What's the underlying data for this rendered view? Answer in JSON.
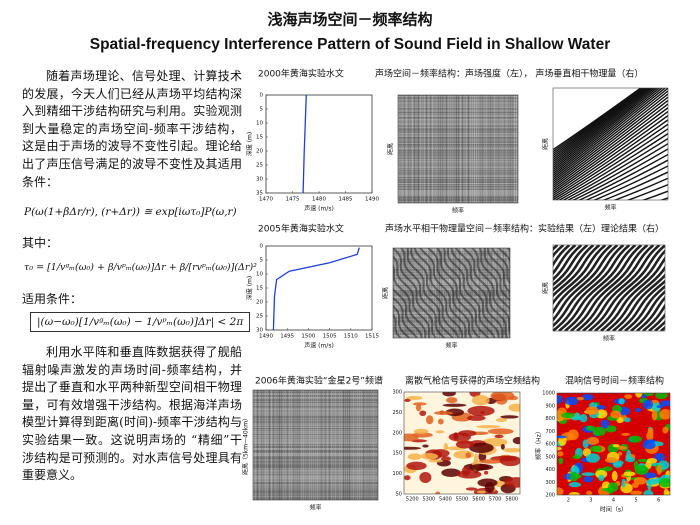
{
  "title": "浅海声场空间－频率结构",
  "subtitle": "Spatial-frequency Interference Pattern of Sound Field in Shallow Water",
  "intro": "随着声场理论、信号处理、计算技术的发展，今天人们已经从声场平均结构深入到精细干涉结构研究与利用。实验观测到大量稳定的声场空间-频率干涉结构，这是由于声场的波导不变性引起。理论给出了声压信号满足的波导不变性及其适用条件：",
  "formulas": [
    "P(ω(1+βΔr/r), (r+Δr)) ≅ exp[iωτ₀]P(ω,r)",
    "τ₀ = [1/vᵍₘ(ω₀) + β/vᵖₘ(ω₀)]Δr + β/[rvᵖₘ(ω₀)](Δr)²",
    "|(ω−ω₀)[1/vᵍₘ(ω₀) − 1/vᵖₘ(ω₀)]Δr| < 2π"
  ],
  "where_label": "其中：",
  "conditions_label": "适用条件：",
  "conclusion": "利用水平阵和垂直阵数据获得了舰船辐射噪声激发的声场时间-频率结构，并提出了垂直和水平两种新型空间相干物理量，可有效增强干涉结构。根据海洋声场模型计算得到距离(时间)-频率干涉结构与实验结果一致。这说明声场的 “精细”干涉结构是可预测的。对水声信号处理具有重要意义。",
  "rows": [
    {
      "captions": [
        "2000年黄海实验水文",
        "声场空间－频率结构：声场强度（左）， 声场垂直相干物理量（右）"
      ]
    },
    {
      "captions": [
        "2005年黄海实验水文",
        "声场水平相干物理量空间－频率结构：实验结果（左）理论结果（右）"
      ]
    },
    {
      "captions": [
        "2006年黄海实验“金星2号”频谱",
        "离散气枪信号获得的声场空频结构",
        "混响信号时间－频率结构"
      ]
    }
  ],
  "profiles": [
    {
      "ylabel": "深度 (m)",
      "xlabel": "声速 (m/s)",
      "yticks": [
        0,
        5,
        10,
        15,
        20,
        25,
        30,
        35
      ],
      "xticks": [
        1470,
        1475,
        1480,
        1485,
        1490
      ]
    },
    {
      "ylabel": "深度 (m)",
      "xlabel": "声速 (m/s)",
      "yticks": [
        0,
        5,
        10,
        15,
        20,
        25,
        30
      ],
      "xticks": [
        1490,
        1495,
        1500,
        1505,
        1510,
        1515
      ]
    }
  ],
  "images": [
    {
      "ylabel": "距离",
      "xlabel": "频率"
    },
    {
      "ylabel": "距离",
      "xlabel": "频率"
    },
    {
      "ylabel": "距离",
      "xlabel": "频率"
    },
    {
      "ylabel": "距离",
      "xlabel": "频率"
    },
    {
      "ylabel": "距离（5km—40km）",
      "xlabel": "频率"
    },
    {
      "yticks": [
        300,
        250,
        200,
        150,
        100,
        50
      ],
      "xticks": [
        5200,
        5300,
        5400,
        5500,
        5600,
        5700,
        5800
      ]
    },
    {
      "ylabel": "频率（Hz）",
      "xlabel": "时间（s）",
      "yticks": [
        1000,
        900,
        800,
        700,
        600,
        500,
        400,
        300,
        200
      ],
      "xticks": [
        2,
        3,
        4,
        5,
        6
      ]
    }
  ]
}
